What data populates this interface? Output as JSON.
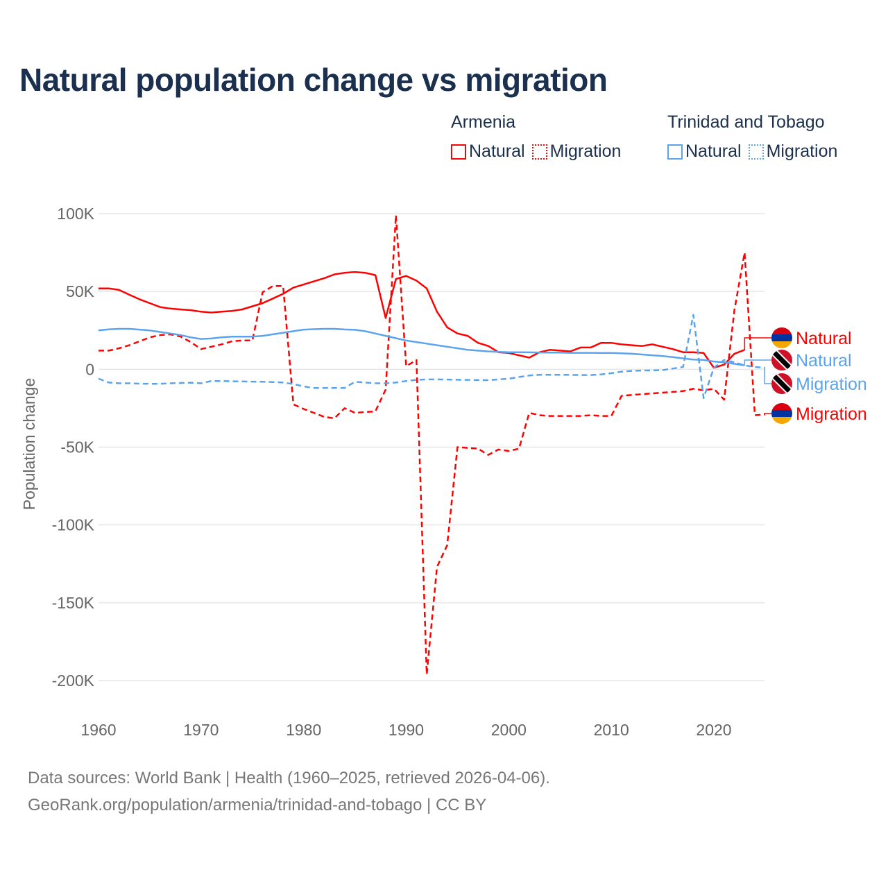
{
  "title": "Natural population change vs migration",
  "legend": {
    "groups": [
      {
        "name": "Armenia",
        "color": "#ff0000",
        "items": [
          "Natural",
          "Migration"
        ]
      },
      {
        "name": "Trinidad and Tobago",
        "color": "#5ba4ec",
        "items": [
          "Natural",
          "Migration"
        ]
      }
    ]
  },
  "footer": {
    "line1": "Data sources: World Bank | Health (1960–2025, retrieved 2026-04-06).",
    "line2": "GeoRank.org/population/armenia/trinidad-and-tobago | CC BY"
  },
  "chart_data": {
    "type": "line",
    "title": "Natural population change vs migration",
    "xlabel": "",
    "ylabel": "Population change",
    "xlim": [
      1960,
      2025
    ],
    "ylim": [
      -200000,
      100000
    ],
    "x_ticks": [
      1960,
      1970,
      1980,
      1990,
      2000,
      2010,
      2020
    ],
    "x_tick_labels": [
      "1960",
      "1970",
      "1980",
      "1990",
      "2000",
      "2010",
      "2020"
    ],
    "y_ticks": [
      100000,
      50000,
      0,
      -50000,
      -100000,
      -150000,
      -200000
    ],
    "y_tick_labels": [
      "100K",
      "50K",
      "0",
      "-50K",
      "-100K",
      "-150K",
      "-200K"
    ],
    "grid": true,
    "end_labels": [
      "Natural",
      "Natural",
      "Migration",
      "Migration"
    ],
    "series": [
      {
        "name": "Armenia Natural",
        "country": "Armenia",
        "kind": "Natural",
        "color": "#ff0000",
        "dashed": false,
        "start": 1960,
        "values": [
          52,
          52,
          51,
          48,
          45,
          42.5,
          40,
          39,
          38.5,
          38,
          37,
          36.5,
          37,
          37.5,
          38.5,
          40.5,
          42.5,
          45.5,
          48.5,
          52.5,
          54.5,
          56.5,
          58.5,
          61,
          62,
          62.5,
          62,
          60.5,
          33,
          58,
          60,
          57,
          52,
          37,
          27,
          23,
          21.5,
          17,
          15,
          11,
          10.5,
          9,
          7.5,
          11,
          12.5,
          12,
          11.5,
          14,
          14,
          17,
          17,
          16,
          15.5,
          15,
          16,
          14.5,
          13,
          11,
          11,
          10.5,
          1,
          3,
          10,
          12.5
        ]
      },
      {
        "name": "Armenia Migration",
        "country": "Armenia",
        "kind": "Migration",
        "color": "#ff0000",
        "dashed": true,
        "start": 1960,
        "values": [
          12,
          12,
          13.5,
          15.5,
          18,
          20.5,
          22,
          22.5,
          21,
          17.5,
          13,
          14.5,
          16,
          18,
          18.5,
          18.5,
          49.5,
          53.5,
          53.5,
          -22.5,
          -25.5,
          -28,
          -30.5,
          -31.5,
          -25,
          -28,
          -27.5,
          -27,
          -13,
          99,
          2,
          6,
          -196,
          -127,
          -113,
          -50,
          -50.5,
          -51,
          -55,
          -51.5,
          -52.5,
          -51,
          -28,
          -29.5,
          -30,
          -30,
          -30,
          -30,
          -29.5,
          -30,
          -30,
          -17,
          -16.5,
          -16,
          -15.5,
          -15,
          -14.5,
          -14,
          -12.5,
          -13.5,
          -12.5,
          -19.5,
          38,
          75,
          -29.5,
          -29
        ]
      },
      {
        "name": "Trinidad and Tobago Natural",
        "country": "Trinidad and Tobago",
        "kind": "Natural",
        "color": "#5ba4ec",
        "dashed": false,
        "start": 1960,
        "values": [
          25,
          25.7,
          26,
          26,
          25.5,
          25,
          24,
          23,
          22,
          20.5,
          19.5,
          19.8,
          20.5,
          21,
          21,
          21,
          21.5,
          22.5,
          23.5,
          24.5,
          25.5,
          25.8,
          26,
          26,
          25.6,
          25.4,
          24.5,
          23,
          21.5,
          20,
          18.5,
          17.5,
          16.5,
          15.5,
          14.5,
          13.5,
          12.5,
          12,
          11.5,
          11.2,
          11,
          11,
          10.9,
          10.8,
          10.7,
          10.7,
          10.6,
          10.6,
          10.6,
          10.5,
          10.5,
          10.3,
          10,
          9.5,
          9,
          8.5,
          7.8,
          7,
          6.3,
          6,
          5,
          4.5,
          3.5,
          2.5
        ]
      },
      {
        "name": "Trinidad and Tobago Migration",
        "country": "Trinidad and Tobago",
        "kind": "Migration",
        "color": "#5ba4ec",
        "dashed": true,
        "start": 1960,
        "values": [
          -6,
          -8.5,
          -9,
          -9,
          -9.2,
          -9.3,
          -9.3,
          -9,
          -8.8,
          -8.6,
          -9,
          -7.5,
          -7.5,
          -7.7,
          -7.8,
          -7.9,
          -8,
          -8.2,
          -8.5,
          -9.5,
          -11,
          -12,
          -12,
          -12,
          -12,
          -8,
          -8.5,
          -9,
          -9,
          -8.5,
          -7.5,
          -6.8,
          -6.5,
          -6.5,
          -6.6,
          -6.7,
          -6.8,
          -6.9,
          -7,
          -6.5,
          -6,
          -5,
          -4,
          -3.5,
          -3.5,
          -3.5,
          -3.6,
          -3.7,
          -3.7,
          -3.3,
          -2.5,
          -1.5,
          -1,
          -0.8,
          -0.7,
          -0.5,
          0.5,
          1.5,
          35,
          -18.5,
          1,
          6,
          4.5,
          2.5,
          1.5,
          1
        ]
      }
    ],
    "value_unit": "thousands"
  }
}
